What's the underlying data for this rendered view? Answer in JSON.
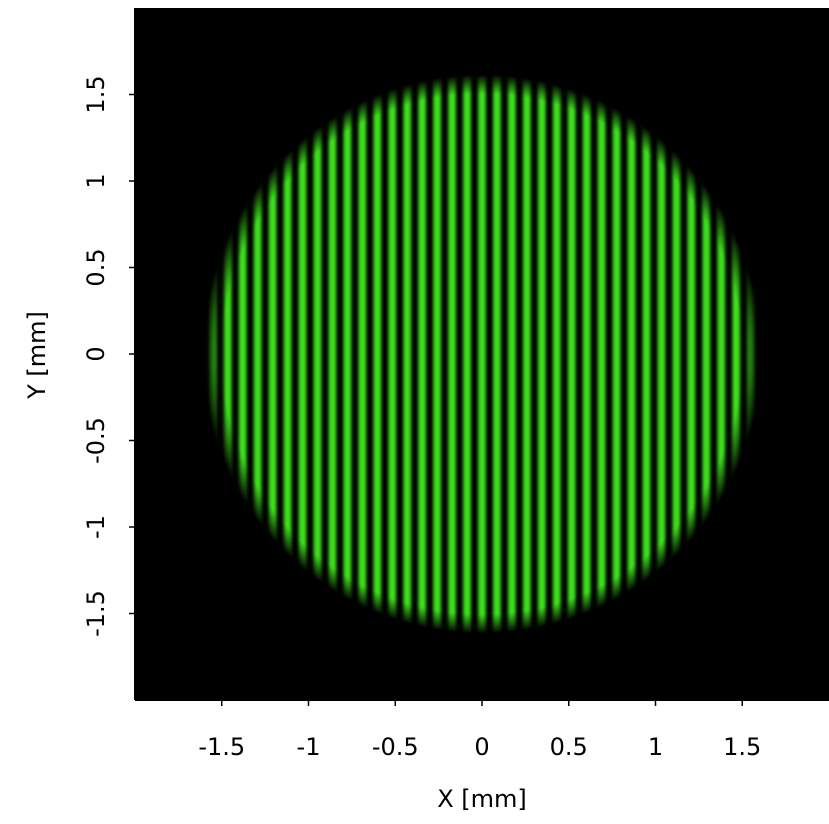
{
  "chart_data": {
    "type": "image",
    "xlabel": "X [mm]",
    "ylabel": "Y [mm]",
    "xlim": [
      -2,
      2
    ],
    "ylim": [
      -2,
      2
    ],
    "xticks": [
      -1.5,
      -1,
      -0.5,
      0,
      0.5,
      1,
      1.5
    ],
    "yticks": [
      -1.5,
      -1,
      -0.5,
      0,
      0.5,
      1,
      1.5
    ],
    "fringe_period": 0.0862,
    "aperture_radius": 1.55,
    "color": "#3ee01c",
    "background": "#000000"
  }
}
